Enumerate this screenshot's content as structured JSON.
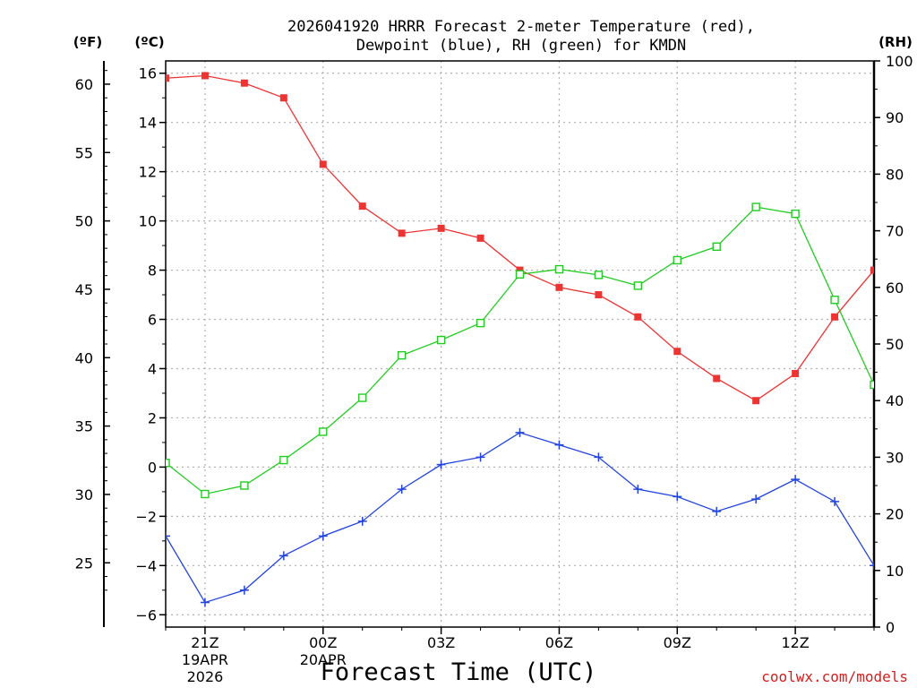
{
  "title_line1": "2026041920 HRRR Forecast 2-meter Temperature (red),",
  "title_line2": "Dewpoint (blue), RH (green) for KMDN",
  "unit_f": "(ºF)",
  "unit_c": "(ºC)",
  "unit_rh": "(RH)",
  "xlabel": "Forecast Time (UTC)",
  "credit": "coolwx.com/models",
  "colors": {
    "temperature": "#ee3333",
    "dewpoint": "#2244dd",
    "rh": "#22cc22",
    "credit": "#d02020",
    "grid": "#b0b0b0"
  },
  "chart_data": {
    "type": "line",
    "x_hours": [
      0,
      1,
      2,
      3,
      4,
      5,
      6,
      7,
      8,
      9,
      10,
      11,
      12,
      13,
      14,
      15,
      16,
      17,
      18
    ],
    "x_ticks": [
      {
        "hour": 1,
        "label": "21Z",
        "date": "19APR",
        "year": "2026"
      },
      {
        "hour": 4,
        "label": "00Z",
        "date": "20APR",
        "year": ""
      },
      {
        "hour": 7,
        "label": "03Z",
        "date": "",
        "year": ""
      },
      {
        "hour": 10,
        "label": "06Z",
        "date": "",
        "year": ""
      },
      {
        "hour": 13,
        "label": "09Z",
        "date": "",
        "year": ""
      },
      {
        "hour": 16,
        "label": "12Z",
        "date": "",
        "year": ""
      }
    ],
    "y_c_ticks": [
      "16",
      "14",
      "12",
      "10",
      "8",
      "6",
      "4",
      "2",
      "0",
      "−2",
      "−4",
      "−6"
    ],
    "y_c_values": [
      16,
      14,
      12,
      10,
      8,
      6,
      4,
      2,
      0,
      -2,
      -4,
      -6
    ],
    "ylim_c": [
      -6.5,
      16.5
    ],
    "y_f_ticks": [
      "60",
      "55",
      "50",
      "45",
      "40",
      "35",
      "30",
      "25"
    ],
    "y_f_values": [
      60,
      55,
      50,
      45,
      40,
      35,
      30,
      25
    ],
    "y_rh_ticks": [
      "100",
      "90",
      "80",
      "70",
      "60",
      "50",
      "40",
      "30",
      "20",
      "10",
      "0"
    ],
    "y_rh_values": [
      100,
      90,
      80,
      70,
      60,
      50,
      40,
      30,
      20,
      10,
      0
    ],
    "ylim_rh": [
      0,
      100
    ],
    "series": [
      {
        "name": "Temperature (red)",
        "unit": "C",
        "marker": "filled-square",
        "values": [
          15.8,
          15.9,
          15.6,
          15.0,
          12.3,
          10.6,
          9.5,
          9.7,
          9.3,
          8.0,
          7.3,
          7.0,
          6.1,
          4.7,
          3.6,
          2.7,
          3.8,
          6.1,
          8.0
        ]
      },
      {
        "name": "Dewpoint (blue)",
        "unit": "C",
        "marker": "plus",
        "values": [
          -2.8,
          -5.5,
          -5.0,
          -3.6,
          -2.8,
          -2.2,
          -0.9,
          0.1,
          0.4,
          1.4,
          0.9,
          0.4,
          -0.9,
          -1.2,
          -1.8,
          -1.3,
          -0.5,
          -1.4,
          -4.0
        ]
      },
      {
        "name": "RH (green)",
        "unit": "%",
        "marker": "open-square",
        "values": [
          29,
          23.5,
          25,
          29.5,
          34.5,
          40.5,
          48,
          50.7,
          53.7,
          62.3,
          63.2,
          62.2,
          60.3,
          64.8,
          67.2,
          74.2,
          73,
          57.8,
          42.8
        ]
      }
    ]
  }
}
